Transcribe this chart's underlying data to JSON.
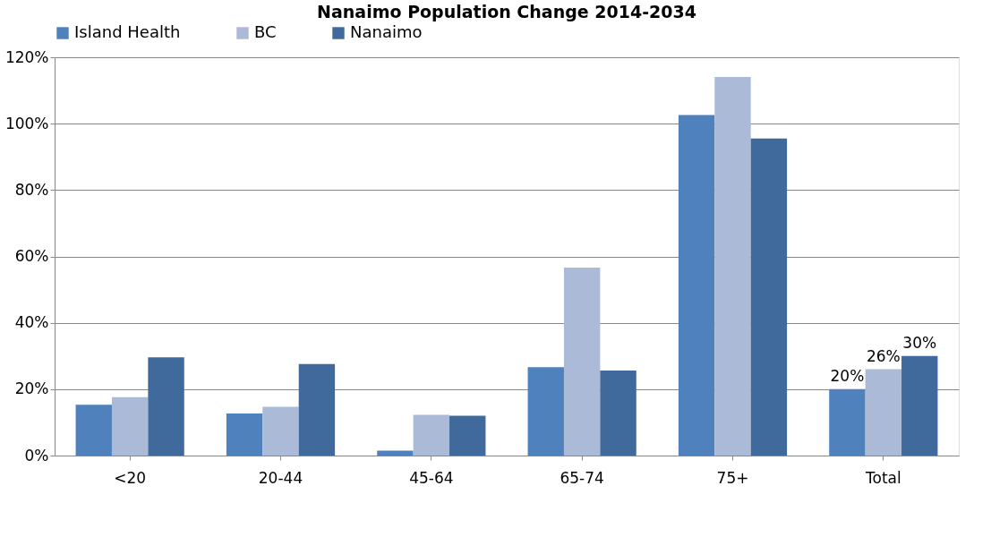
{
  "chart_data": {
    "type": "bar",
    "title": "Nanaimo Population Change 2014-2034",
    "categories": [
      "<20",
      "20-44",
      "45-64",
      "65-74",
      "75+",
      "Total"
    ],
    "series": [
      {
        "name": "Island Health",
        "color": "#4f81bd",
        "values": [
          15.3,
          12.7,
          1.5,
          26.6,
          102.6,
          20
        ],
        "value_labels": [
          null,
          null,
          null,
          null,
          null,
          "20%"
        ]
      },
      {
        "name": "BC",
        "color": "#aabad7",
        "values": [
          17.6,
          14.7,
          12.3,
          56.6,
          114.1,
          26
        ],
        "value_labels": [
          null,
          null,
          null,
          null,
          null,
          "26%"
        ]
      },
      {
        "name": "Nanaimo",
        "color": "#416a9c",
        "values": [
          29.6,
          27.6,
          12.0,
          25.6,
          95.5,
          30
        ],
        "value_labels": [
          null,
          null,
          null,
          null,
          null,
          "30%"
        ]
      }
    ],
    "ylim": [
      0,
      120
    ],
    "yticks": [
      {
        "value": 0,
        "label": "0%"
      },
      {
        "value": 20,
        "label": "20%"
      },
      {
        "value": 40,
        "label": "40%"
      },
      {
        "value": 60,
        "label": "60%"
      },
      {
        "value": 80,
        "label": "80%"
      },
      {
        "value": 100,
        "label": "100%"
      },
      {
        "value": 120,
        "label": "120%"
      }
    ],
    "grid": "y",
    "legend": "top"
  }
}
